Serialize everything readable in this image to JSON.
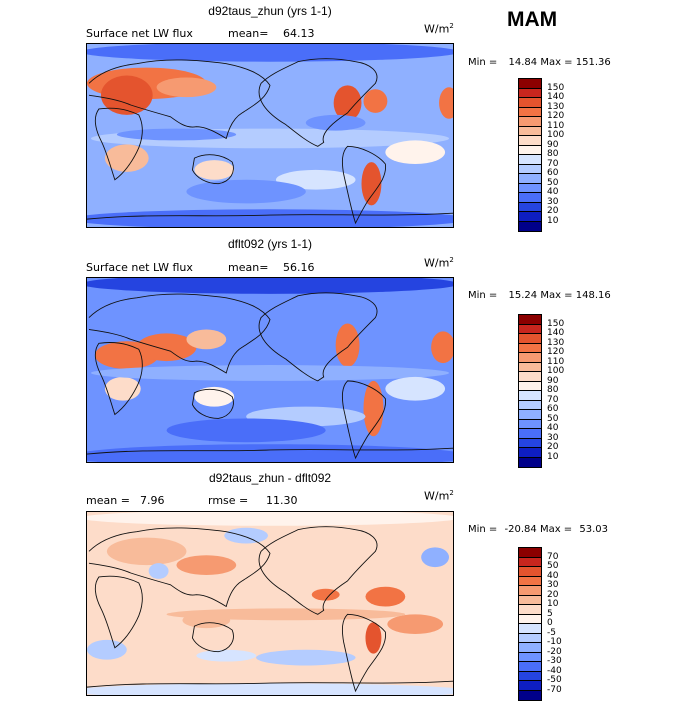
{
  "season": "MAM",
  "panels": [
    {
      "title": "d92taus_zhun (yrs 1-1)",
      "left_label": "Surface net LW flux",
      "stat_label": "mean=",
      "stat_value": "64.13",
      "units_main": "W/m",
      "units_exp": "2",
      "min_label": "Min =",
      "min_value": "14.84",
      "max_label": "Max =",
      "max_value": "151.36",
      "levels": [
        "150",
        "140",
        "130",
        "120",
        "110",
        "100",
        "90",
        "80",
        "70",
        "60",
        "50",
        "40",
        "30",
        "20",
        "10"
      ],
      "colors": [
        "#8b0000",
        "#c8261e",
        "#e4542e",
        "#f27344",
        "#f69a71",
        "#f8bb9a",
        "#fddcc9",
        "#fff3ec",
        "#d6e4ff",
        "#b4ccff",
        "#8fb0ff",
        "#6e93ff",
        "#4a6ef9",
        "#2544e0",
        "#0e1ec2",
        "#00008a"
      ]
    },
    {
      "title": "dflt092 (yrs 1-1)",
      "left_label": "Surface net LW flux",
      "stat_label": "mean=",
      "stat_value": "56.16",
      "units_main": "W/m",
      "units_exp": "2",
      "min_label": "Min =",
      "min_value": "15.24",
      "max_label": "Max =",
      "max_value": "148.16",
      "levels": [
        "150",
        "140",
        "130",
        "120",
        "110",
        "100",
        "90",
        "80",
        "70",
        "60",
        "50",
        "40",
        "30",
        "20",
        "10"
      ],
      "colors": [
        "#8b0000",
        "#c8261e",
        "#e4542e",
        "#f27344",
        "#f69a71",
        "#f8bb9a",
        "#fddcc9",
        "#fff3ec",
        "#d6e4ff",
        "#b4ccff",
        "#8fb0ff",
        "#6e93ff",
        "#4a6ef9",
        "#2544e0",
        "#0e1ec2",
        "#00008a"
      ]
    },
    {
      "title": "d92taus_zhun - dflt092",
      "left_label": "mean =",
      "left_value": "7.96",
      "stat_label": "rmse =",
      "stat_value": "11.30",
      "units_main": "W/m",
      "units_exp": "2",
      "min_label": "Min =",
      "min_value": "-20.84",
      "max_label": "Max =",
      "max_value": "53.03",
      "levels": [
        "70",
        "50",
        "40",
        "30",
        "20",
        "10",
        "5",
        "0",
        "-5",
        "-10",
        "-20",
        "-30",
        "-40",
        "-50",
        "-70"
      ],
      "colors": [
        "#8b0000",
        "#c8261e",
        "#e4542e",
        "#f27344",
        "#f69a71",
        "#f8bb9a",
        "#fddcc9",
        "#fff3ec",
        "#d6e4ff",
        "#b4ccff",
        "#8fb0ff",
        "#6e93ff",
        "#4a6ef9",
        "#2544e0",
        "#0e1ec2",
        "#00008a"
      ]
    }
  ]
}
